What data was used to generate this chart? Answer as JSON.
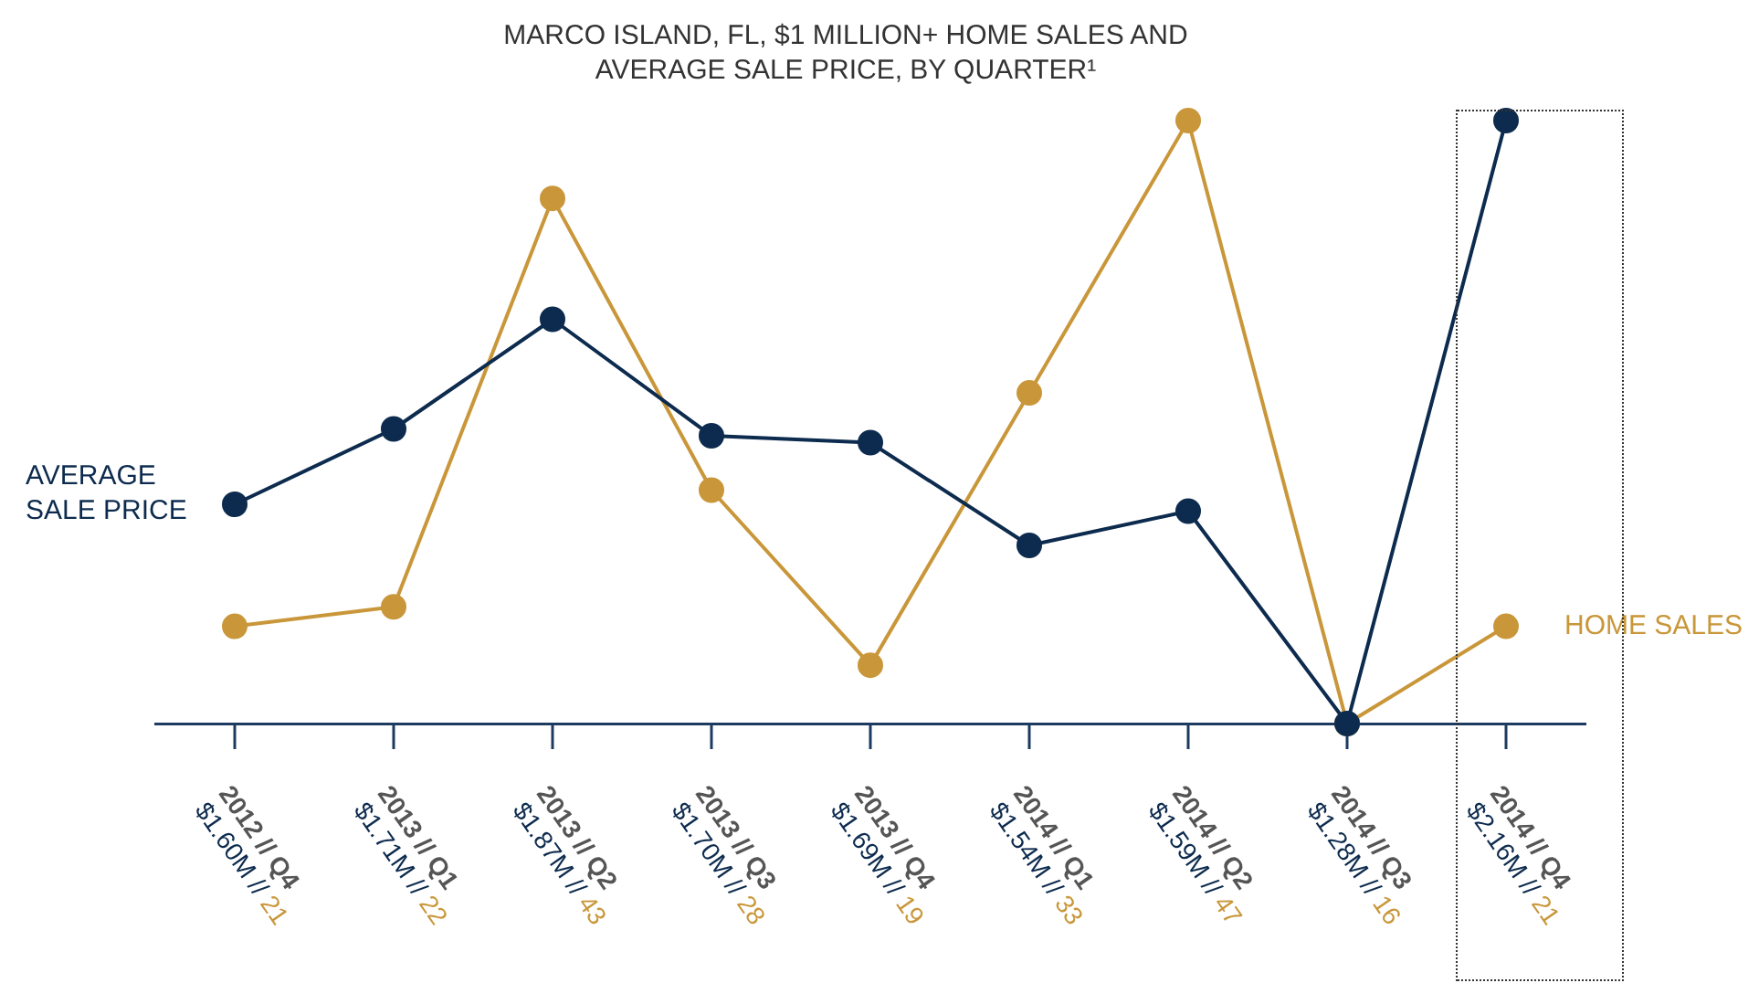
{
  "chart_data": {
    "type": "line",
    "title": "MARCO ISLAND, FL, $1 MILLION+ HOME SALES AND AVERAGE SALE PRICE, BY QUARTER¹",
    "categories": [
      "2012 // Q4",
      "2013 // Q1",
      "2013 // Q2",
      "2013 // Q3",
      "2013 // Q4",
      "2014 // Q1",
      "2014 // Q2",
      "2014 // Q3",
      "2014 // Q4"
    ],
    "series": [
      {
        "name": "AVERAGE SALE PRICE",
        "color": "#0d2b4e",
        "values": [
          1.6,
          1.71,
          1.87,
          1.7,
          1.69,
          1.54,
          1.59,
          1.28,
          2.16
        ],
        "value_labels": [
          "$1.60M //",
          "$1.71M //",
          "$1.87M //",
          "$1.70M //",
          "$1.69M //",
          "$1.54M //",
          "$1.59M //",
          "$1.28M //",
          "$2.16M //"
        ]
      },
      {
        "name": "HOME SALES",
        "color": "#c9973a",
        "axis": "y2",
        "values": [
          21,
          22,
          43,
          28,
          19,
          33,
          47,
          16,
          21
        ],
        "value_labels": [
          "21",
          "22",
          "43",
          "28",
          "19",
          "33",
          "47",
          "16",
          "21"
        ]
      }
    ],
    "tick_labels": "x",
    "grid": false,
    "legend": false,
    "marker": "circle",
    "line_style": "solid"
  }
}
